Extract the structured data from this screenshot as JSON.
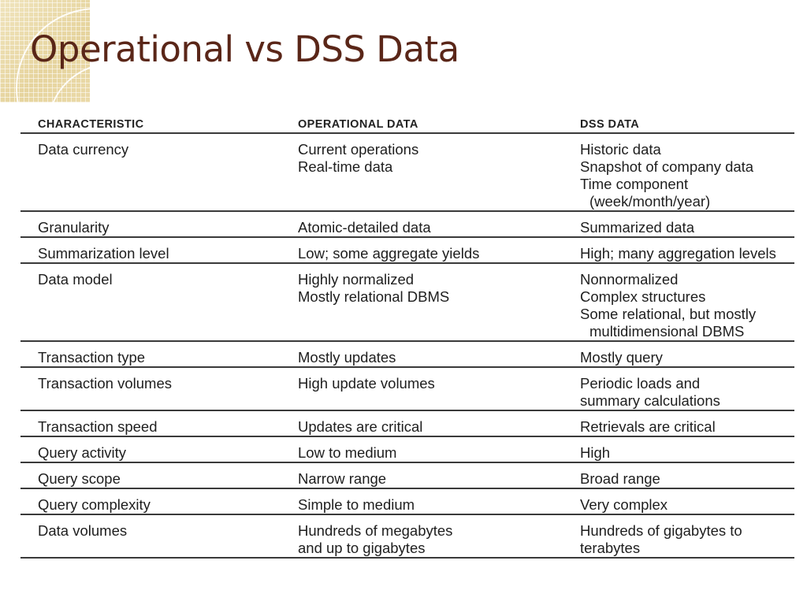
{
  "slide": {
    "title": "Operational vs DSS Data"
  },
  "table": {
    "headers": [
      "CHARACTERISTIC",
      "OPERATIONAL DATA",
      "DSS DATA"
    ],
    "rows": [
      {
        "characteristic": "Data currency",
        "operational": [
          "Current operations",
          "Real-time data"
        ],
        "dss": [
          "Historic data",
          "Snapshot of company data",
          "Time component",
          "(week/month/year)"
        ]
      },
      {
        "characteristic": "Granularity",
        "operational": [
          "Atomic-detailed data"
        ],
        "dss": [
          "Summarized data"
        ]
      },
      {
        "characteristic": "Summarization level",
        "operational": [
          "Low; some aggregate yields"
        ],
        "dss": [
          "High; many aggregation levels"
        ]
      },
      {
        "characteristic": "Data model",
        "operational": [
          "Highly normalized",
          "Mostly relational DBMS"
        ],
        "dss": [
          "Nonnormalized",
          "Complex structures",
          "Some relational, but mostly",
          "multidimensional DBMS"
        ]
      },
      {
        "characteristic": "Transaction type",
        "operational": [
          "Mostly updates"
        ],
        "dss": [
          "Mostly query"
        ]
      },
      {
        "characteristic": "Transaction volumes",
        "operational": [
          "High update volumes"
        ],
        "dss": [
          "Periodic loads and",
          "summary calculations"
        ]
      },
      {
        "characteristic": "Transaction speed",
        "operational": [
          "Updates are critical"
        ],
        "dss": [
          "Retrievals are critical"
        ]
      },
      {
        "characteristic": "Query activity",
        "operational": [
          "Low to medium"
        ],
        "dss": [
          "High"
        ]
      },
      {
        "characteristic": "Query scope",
        "operational": [
          "Narrow range"
        ],
        "dss": [
          "Broad range"
        ]
      },
      {
        "characteristic": "Query complexity",
        "operational": [
          "Simple to medium"
        ],
        "dss": [
          "Very complex"
        ]
      },
      {
        "characteristic": "Data volumes",
        "operational": [
          "Hundreds of megabytes",
          "and up to gigabytes"
        ],
        "dss": [
          "Hundreds of gigabytes to",
          "terabytes"
        ]
      }
    ]
  }
}
